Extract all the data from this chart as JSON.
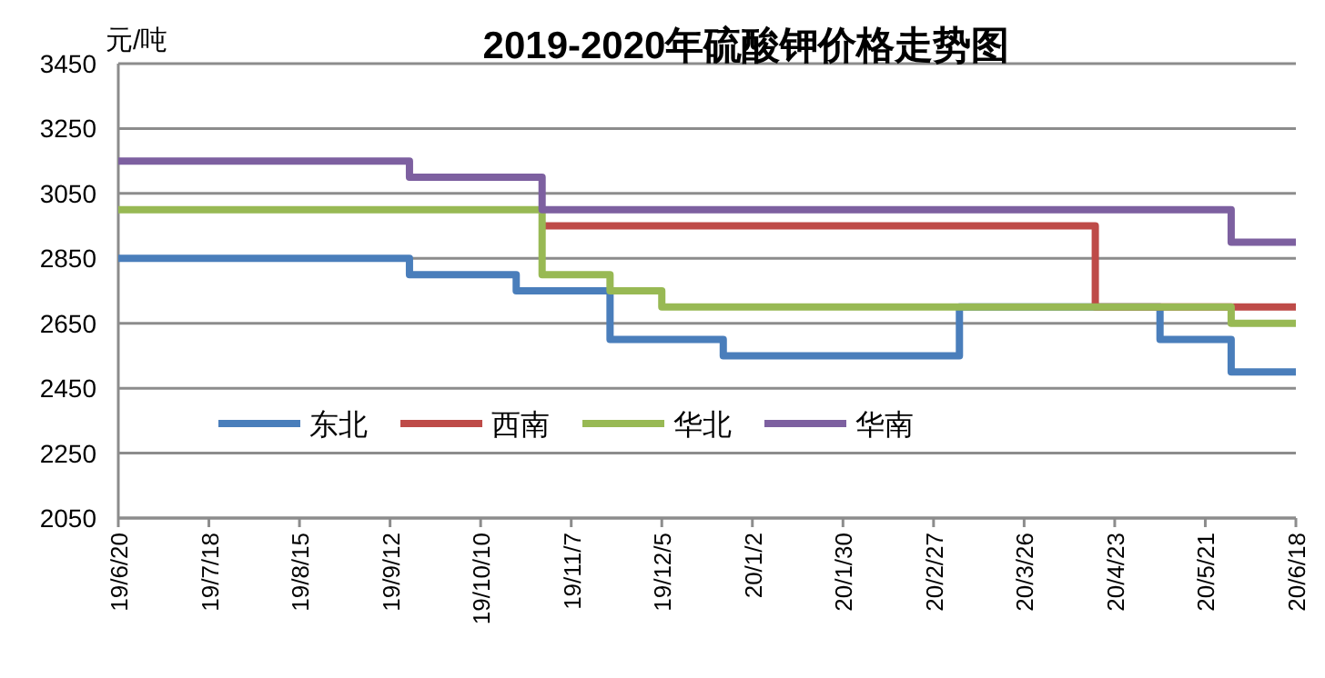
{
  "chart_data": {
    "type": "step",
    "title": "2019-2020年硫酸钾价格走势图",
    "ylabel": "元/吨",
    "xlim": [
      "2019-06-20",
      "2020-06-18"
    ],
    "xticks": [
      {
        "value": "2019-06-20",
        "label": "19/6/20"
      },
      {
        "value": "2019-07-18",
        "label": "19/7/18"
      },
      {
        "value": "2019-08-15",
        "label": "19/8/15"
      },
      {
        "value": "2019-09-12",
        "label": "19/9/12"
      },
      {
        "value": "2019-10-10",
        "label": "19/10/10"
      },
      {
        "value": "2019-11-07",
        "label": "19/11/7"
      },
      {
        "value": "2019-12-05",
        "label": "19/12/5"
      },
      {
        "value": "2020-01-02",
        "label": "20/1/2"
      },
      {
        "value": "2020-01-30",
        "label": "20/1/30"
      },
      {
        "value": "2020-02-27",
        "label": "20/2/27"
      },
      {
        "value": "2020-03-26",
        "label": "20/3/26"
      },
      {
        "value": "2020-04-23",
        "label": "20/4/23"
      },
      {
        "value": "2020-05-21",
        "label": "20/5/21"
      },
      {
        "value": "2020-06-18",
        "label": "20/6/18"
      }
    ],
    "ylim": [
      2050,
      3450
    ],
    "yticks": [
      2050,
      2250,
      2450,
      2650,
      2850,
      3050,
      3250,
      3450
    ],
    "grid": "y",
    "legend": "bottom left",
    "marker": "none",
    "line_style": "solid",
    "series": [
      {
        "name": "东北",
        "color": "#4a7ebb",
        "x": [
          "2019-06-20",
          "2019-09-18",
          "2019-10-21",
          "2019-11-19",
          "2019-12-24",
          "2020-03-06",
          "2020-05-07",
          "2020-05-29",
          "2020-06-18"
        ],
        "values": [
          2850,
          2800,
          2750,
          2600,
          2550,
          2700,
          2600,
          2500,
          2500
        ]
      },
      {
        "name": "西南",
        "color": "#be4b48",
        "x": [
          "2019-10-29",
          "2020-04-17",
          "2020-06-18"
        ],
        "values": [
          2950,
          2700,
          2700
        ]
      },
      {
        "name": "华北",
        "color": "#98b954",
        "x": [
          "2019-06-20",
          "2019-10-29",
          "2019-11-19",
          "2019-12-05",
          "2020-05-29",
          "2020-06-18"
        ],
        "values": [
          3000,
          2800,
          2750,
          2700,
          2650,
          2650
        ]
      },
      {
        "name": "华南",
        "color": "#7d60a0",
        "x": [
          "2019-06-20",
          "2019-09-18",
          "2019-10-29",
          "2020-05-29",
          "2020-06-18"
        ],
        "values": [
          3150,
          3100,
          3000,
          2900,
          2900
        ]
      }
    ]
  }
}
